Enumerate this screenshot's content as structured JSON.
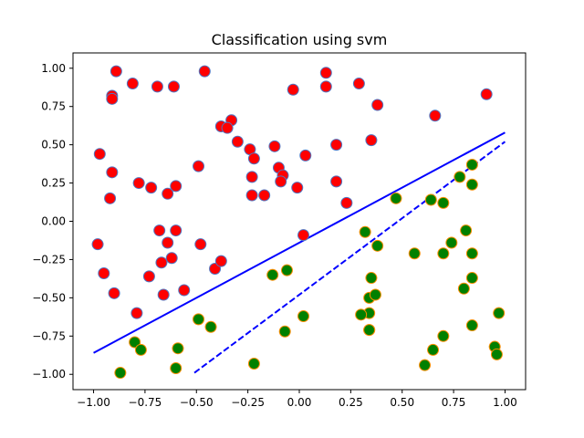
{
  "chart_data": {
    "type": "scatter",
    "title": "Classification using svm",
    "xlabel": "",
    "ylabel": "",
    "xlim": [
      -1.1,
      1.1
    ],
    "ylim": [
      -1.1,
      1.1
    ],
    "xticks": [
      -1.0,
      -0.75,
      -0.5,
      -0.25,
      0.0,
      0.25,
      0.5,
      0.75,
      1.0
    ],
    "xtick_labels": [
      "−1.00",
      "−0.75",
      "−0.50",
      "−0.25",
      "0.00",
      "0.25",
      "0.50",
      "0.75",
      "1.00"
    ],
    "yticks": [
      1.0,
      0.75,
      0.5,
      0.25,
      0.0,
      -0.25,
      -0.5,
      -0.75,
      -1.0
    ],
    "ytick_labels": [
      "1.00",
      "0.75",
      "0.50",
      "0.25",
      "0.00",
      "−0.25",
      "−0.50",
      "−0.75",
      "−1.00"
    ],
    "grid": false,
    "colors": {
      "class_red_fill": "#ff0000",
      "class_red_edge": "#4f76c2",
      "class_green_fill": "#008000",
      "class_green_edge": "#ff8c00",
      "line": "#0000ff"
    },
    "series": [
      {
        "fill": "#ff0000",
        "edge": "#4f76c2",
        "x": [
          -0.89,
          -0.81,
          -0.69,
          -0.61,
          -0.46,
          -0.03,
          0.13,
          0.29,
          -0.91,
          -0.91,
          0.91,
          0.13,
          0.38,
          0.66,
          -0.33,
          -0.38,
          -0.35,
          -0.97,
          -0.3,
          -0.24,
          0.35,
          -0.12,
          0.18,
          -0.22,
          -0.91,
          -0.78,
          -0.49,
          -0.6,
          -0.72,
          -0.64,
          -0.92,
          0.18,
          -0.23,
          -0.1,
          -0.23,
          -0.17,
          -0.08,
          -0.01,
          -0.09,
          0.23,
          -0.68,
          -0.6,
          0.03,
          0.02,
          -0.98,
          -0.64,
          -0.48,
          -0.95,
          -0.62,
          -0.41,
          -0.67,
          -0.73,
          -0.38,
          -0.56,
          -0.9,
          -0.66,
          -0.79
        ],
        "y": [
          0.98,
          0.9,
          0.88,
          0.88,
          0.98,
          0.86,
          0.97,
          0.9,
          0.82,
          0.8,
          0.83,
          0.88,
          0.76,
          0.69,
          0.66,
          0.62,
          0.61,
          0.44,
          0.52,
          0.47,
          0.53,
          0.49,
          0.5,
          0.41,
          0.32,
          0.25,
          0.36,
          0.23,
          0.22,
          0.18,
          0.15,
          0.26,
          0.29,
          0.35,
          0.17,
          0.17,
          0.3,
          0.22,
          0.26,
          0.12,
          -0.06,
          -0.06,
          0.43,
          -0.09,
          -0.15,
          -0.14,
          -0.15,
          -0.34,
          -0.24,
          -0.31,
          -0.27,
          -0.36,
          -0.26,
          -0.45,
          -0.47,
          -0.48,
          -0.6
        ]
      },
      {
        "fill": "#008000",
        "edge": "#ff8c00",
        "x": [
          0.84,
          0.78,
          0.84,
          0.47,
          0.64,
          0.7,
          0.32,
          0.56,
          0.7,
          0.81,
          0.74,
          0.84,
          0.38,
          0.35,
          -0.13,
          -0.06,
          0.34,
          0.34,
          0.8,
          0.84,
          0.37,
          0.34,
          0.3,
          0.02,
          -0.49,
          -0.43,
          0.84,
          0.97,
          -0.8,
          -0.07,
          0.34,
          0.7,
          -0.77,
          -0.59,
          0.95,
          0.65,
          0.96,
          -0.87,
          -0.6,
          -0.22,
          0.61
        ],
        "y": [
          0.37,
          0.29,
          0.24,
          0.15,
          0.14,
          0.12,
          -0.07,
          -0.21,
          -0.21,
          -0.06,
          -0.14,
          -0.21,
          -0.16,
          -0.37,
          -0.35,
          -0.32,
          -0.5,
          -0.6,
          -0.44,
          -0.37,
          -0.48,
          -0.71,
          -0.61,
          -0.62,
          -0.64,
          -0.69,
          -0.68,
          -0.6,
          -0.79,
          -0.72,
          -0.71,
          -0.75,
          -0.84,
          -0.83,
          -0.82,
          -0.84,
          -0.87,
          -0.99,
          -0.96,
          -0.93,
          -0.94
        ]
      }
    ],
    "lines": [
      {
        "style": "solid",
        "color": "#0000ff",
        "x": [
          -1.0,
          1.0
        ],
        "y": [
          -0.86,
          0.58
        ]
      },
      {
        "style": "dashed",
        "color": "#0000ff",
        "x": [
          -0.51,
          1.0
        ],
        "y": [
          -0.99,
          0.52
        ]
      }
    ]
  }
}
